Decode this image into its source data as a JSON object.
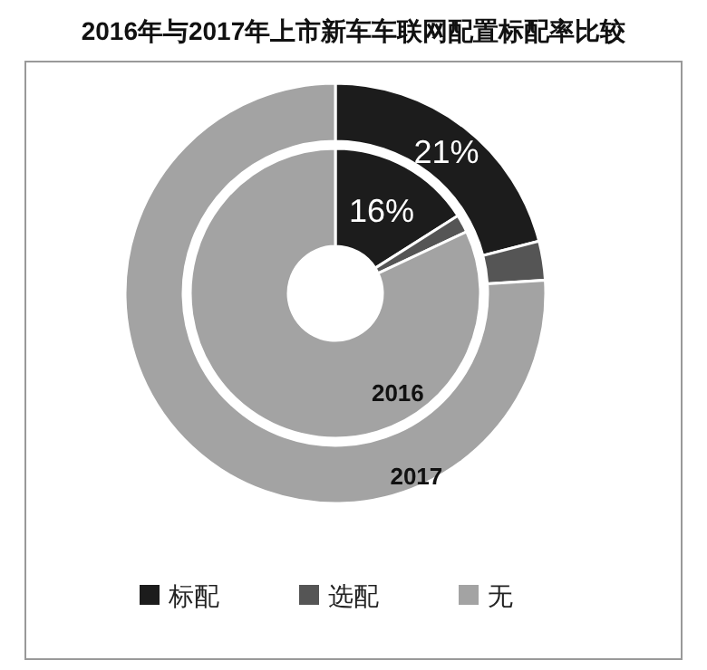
{
  "chart_data": {
    "type": "donut",
    "title": "2016年与2017年上市新车车联网配置标配率比较",
    "categories": [
      "标配",
      "选配",
      "无"
    ],
    "colors": [
      "#1c1c1c",
      "#555555",
      "#a3a3a3"
    ],
    "series": [
      {
        "name": "2016",
        "values": [
          16,
          2,
          82
        ],
        "value_labels": [
          "16%",
          null,
          null
        ]
      },
      {
        "name": "2017",
        "values": [
          21,
          3,
          76
        ],
        "value_labels": [
          "21%",
          null,
          null
        ]
      }
    ],
    "legend": "bottom"
  }
}
